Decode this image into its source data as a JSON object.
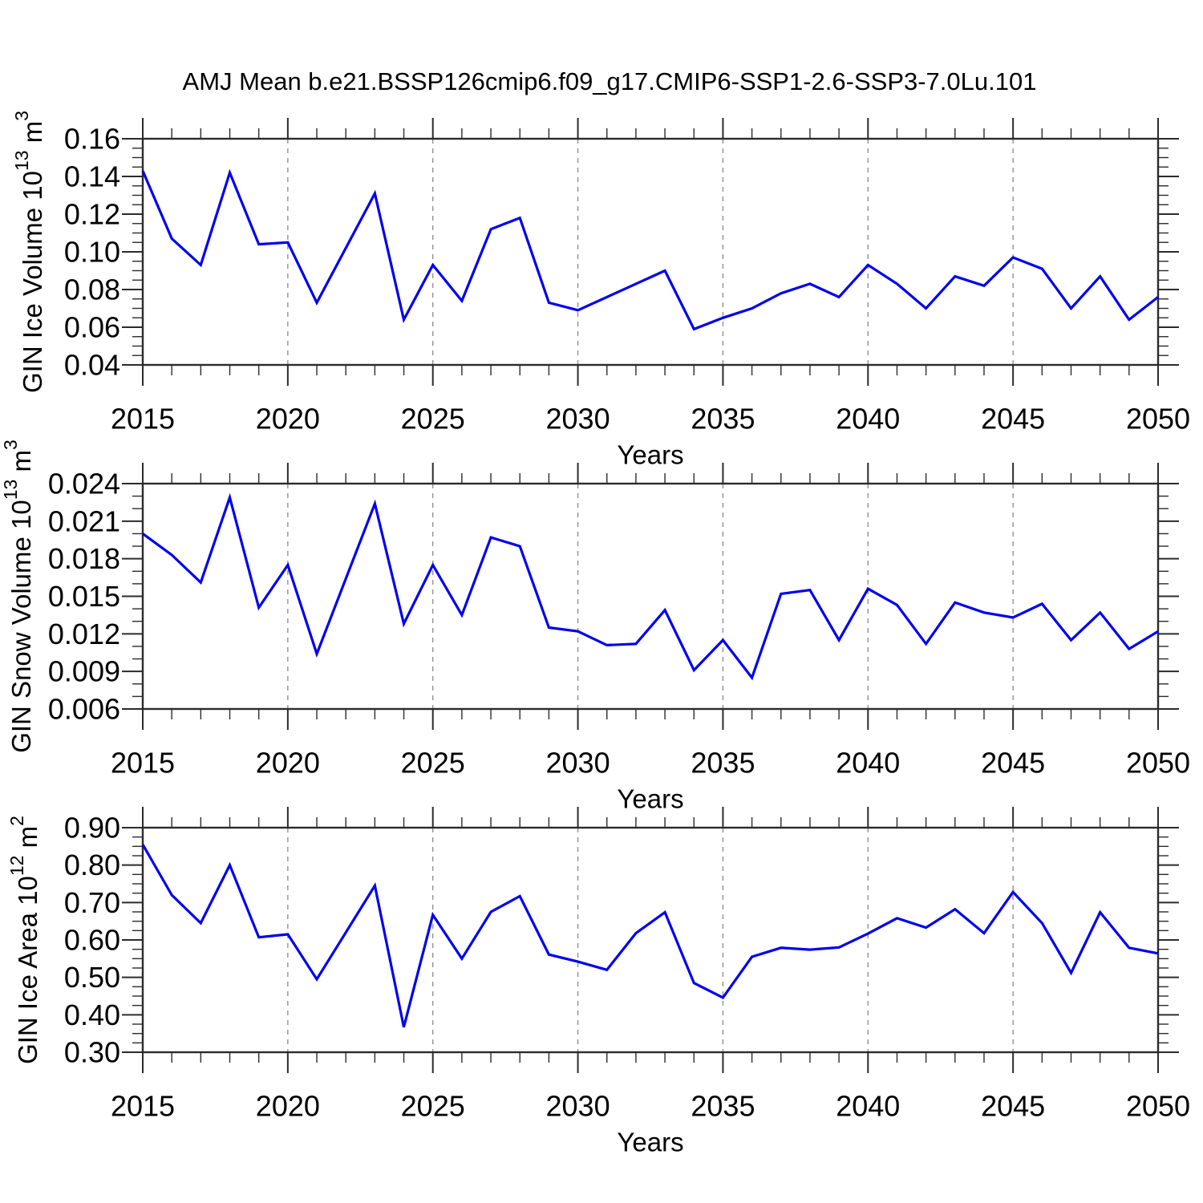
{
  "title": "AMJ Mean b.e21.BSSP126cmip6.f09_g17.CMIP6-SSP1-2.6-SSP3-7.0Lu.101",
  "colors": {
    "line": "#0000f0",
    "grid": "#8a8a8a",
    "axis": "#2b2b2b",
    "text": "#000000",
    "background": "#ffffff"
  },
  "x_axis": {
    "label": "Years",
    "start": 2015,
    "end": 2050,
    "major_step": 5,
    "minor_step": 1,
    "tick_labels": [
      "2015",
      "2020",
      "2025",
      "2030",
      "2035",
      "2040",
      "2045",
      "2050"
    ],
    "grid_years": [
      2020,
      2025,
      2030,
      2035,
      2040,
      2045
    ]
  },
  "chart_data": [
    {
      "id": "gin-ice-volume",
      "type": "line",
      "ylabel": "GIN Ice Volume 10^13 m^3",
      "ylabel_parts": [
        {
          "text": "GIN Ice Volume 10"
        },
        {
          "text": "13",
          "sup": true
        },
        {
          "text": " m"
        },
        {
          "text": "3",
          "sup": true
        }
      ],
      "ylabel_x": 40,
      "xlabel": "Years",
      "ylim": [
        0.04,
        0.16
      ],
      "yticks": [
        0.04,
        0.06,
        0.08,
        0.1,
        0.12,
        0.14,
        0.16
      ],
      "ytick_labels": [
        "0.04",
        "0.06",
        "0.08",
        "0.10",
        "0.12",
        "0.14",
        "0.16"
      ],
      "ymajor": 0.02,
      "yminor": 0.005,
      "x": [
        2015,
        2016,
        2017,
        2018,
        2019,
        2020,
        2021,
        2022,
        2023,
        2024,
        2025,
        2026,
        2027,
        2028,
        2029,
        2030,
        2031,
        2032,
        2033,
        2034,
        2035,
        2036,
        2037,
        2038,
        2039,
        2040,
        2041,
        2042,
        2043,
        2044,
        2045,
        2046,
        2047,
        2048,
        2049,
        2050
      ],
      "values": [
        0.143,
        0.107,
        0.093,
        0.142,
        0.104,
        0.105,
        0.073,
        0.102,
        0.131,
        0.064,
        0.093,
        0.074,
        0.112,
        0.118,
        0.073,
        0.069,
        0.076,
        0.083,
        0.09,
        0.059,
        0.065,
        0.07,
        0.078,
        0.083,
        0.076,
        0.093,
        0.083,
        0.07,
        0.087,
        0.082,
        0.097,
        0.091,
        0.07,
        0.087,
        0.064,
        0.076
      ]
    },
    {
      "id": "gin-snow-volume",
      "type": "line",
      "ylabel": "GIN Snow Volume 10^13 m^3",
      "ylabel_parts": [
        {
          "text": "GIN Snow Volume 10"
        },
        {
          "text": "13",
          "sup": true
        },
        {
          "text": " m"
        },
        {
          "text": "3",
          "sup": true
        }
      ],
      "ylabel_x": 26,
      "xlabel": "Years",
      "ylim": [
        0.006,
        0.024
      ],
      "yticks": [
        0.006,
        0.009,
        0.012,
        0.015,
        0.018,
        0.021,
        0.024
      ],
      "ytick_labels": [
        "0.006",
        "0.009",
        "0.012",
        "0.015",
        "0.018",
        "0.021",
        "0.024"
      ],
      "ymajor": 0.003,
      "yminor": 0.001,
      "x": [
        2015,
        2016,
        2017,
        2018,
        2019,
        2020,
        2021,
        2022,
        2023,
        2024,
        2025,
        2026,
        2027,
        2028,
        2029,
        2030,
        2031,
        2032,
        2033,
        2034,
        2035,
        2036,
        2037,
        2038,
        2039,
        2040,
        2041,
        2042,
        2043,
        2044,
        2045,
        2046,
        2047,
        2048,
        2049,
        2050
      ],
      "values": [
        0.02,
        0.0183,
        0.0161,
        0.0229,
        0.0141,
        0.0175,
        0.0104,
        0.0164,
        0.0224,
        0.0128,
        0.0175,
        0.0135,
        0.0197,
        0.019,
        0.0125,
        0.0122,
        0.0111,
        0.0112,
        0.0139,
        0.0091,
        0.0115,
        0.0085,
        0.0152,
        0.0155,
        0.0115,
        0.0156,
        0.0143,
        0.0112,
        0.0145,
        0.0137,
        0.0133,
        0.0144,
        0.0115,
        0.0137,
        0.0108,
        0.0122
      ]
    },
    {
      "id": "gin-ice-area",
      "type": "line",
      "ylabel": "GIN Ice Area 10^12 m^2",
      "ylabel_parts": [
        {
          "text": "GIN Ice Area 10"
        },
        {
          "text": "12",
          "sup": true
        },
        {
          "text": " m"
        },
        {
          "text": "2",
          "sup": true
        }
      ],
      "ylabel_x": 34,
      "xlabel": "Years",
      "ylim": [
        0.3,
        0.9
      ],
      "yticks": [
        0.3,
        0.4,
        0.5,
        0.6,
        0.7,
        0.8,
        0.9
      ],
      "ytick_labels": [
        "0.30",
        "0.40",
        "0.50",
        "0.60",
        "0.70",
        "0.80",
        "0.90"
      ],
      "ymajor": 0.1,
      "yminor": 0.025,
      "x": [
        2015,
        2016,
        2017,
        2018,
        2019,
        2020,
        2021,
        2022,
        2023,
        2024,
        2025,
        2026,
        2027,
        2028,
        2029,
        2030,
        2031,
        2032,
        2033,
        2034,
        2035,
        2036,
        2037,
        2038,
        2039,
        2040,
        2041,
        2042,
        2043,
        2044,
        2045,
        2046,
        2047,
        2048,
        2049,
        2050
      ],
      "values": [
        0.855,
        0.72,
        0.645,
        0.8,
        0.607,
        0.615,
        0.495,
        0.62,
        0.745,
        0.367,
        0.667,
        0.55,
        0.675,
        0.717,
        0.561,
        0.542,
        0.52,
        0.618,
        0.674,
        0.485,
        0.446,
        0.555,
        0.579,
        0.574,
        0.58,
        0.617,
        0.658,
        0.633,
        0.682,
        0.618,
        0.728,
        0.645,
        0.512,
        0.674,
        0.579,
        0.564
      ]
    }
  ]
}
